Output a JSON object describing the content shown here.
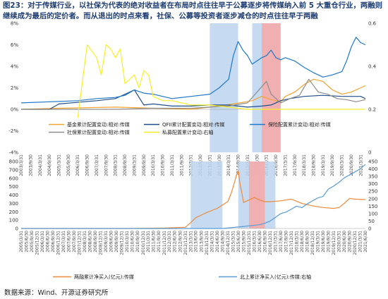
{
  "title": "图23：对于传媒行业，以社保为代表的绝对收益者在布局时点往往早于公募逐步将传媒纳入前 5 大重仓行业，两融则继续成为最后的定价者。而从退出的时点来看，社保、公募等投资者逐步减仓的时点往往早于两融",
  "source": "数据来源：Wind、开源证券研究所",
  "colors": {
    "fund": "#f2a531",
    "insurance": "#1f78c8",
    "social": "#8c8c8c",
    "private": "#f7ee2a",
    "qfii": "#1f4e8c",
    "margin": "#ee8a3c",
    "north": "#5b9bd5",
    "band_blue": "#bcd5ee",
    "band_red": "#f4aaaa"
  },
  "chart_data": [
    {
      "type": "line",
      "x_dates": [
        "2005/3/31",
        "2005/6/30",
        "2005/9/30",
        "2005/12/31",
        "2006/3/31",
        "2006/6/30",
        "2006/9/30",
        "2006/12/31",
        "2007/3/31",
        "2007/6/30",
        "2007/9/30",
        "2007/12/31",
        "2008/3/31",
        "2008/6/30",
        "2008/9/30",
        "2008/12/31",
        "2009/3/31",
        "2009/6/30",
        "2009/9/30",
        "2009/12/31",
        "2010/3/31",
        "2010/6/30",
        "2010/9/30",
        "2010/12/31",
        "2011/3/31",
        "2011/6/30",
        "2011/9/30",
        "2011/12/31",
        "2012/3/31",
        "2012/6/30",
        "2012/9/30",
        "2012/12/31",
        "2013/3/31",
        "2013/6/30",
        "2013/9/30",
        "2013/12/31",
        "2014/3/31",
        "2014/6/30",
        "2014/9/30",
        "2014/12/31",
        "2015/3/31",
        "2015/6/30",
        "2015/9/30",
        "2015/12/31",
        "2016/3/31",
        "2016/6/30",
        "2016/9/30",
        "2016/12/31",
        "2017/3/31",
        "2017/6/30",
        "2017/9/30",
        "2017/12/31",
        "2018/3/31",
        "2018/6/30",
        "2018/9/30",
        "2018/12/31",
        "2019/3/31",
        "2019/6/30",
        "2019/9/30",
        "2019/12/31",
        "2020/3/31",
        "2020/6/30",
        "2020/9/30",
        "2020/12/31",
        "2021/3/31",
        "2021/6/30"
      ],
      "x_ticks": [
        "2003/3/31",
        "2003/9/30",
        "2004/3/31",
        "2004/9/30",
        "2005/3/31",
        "2005/9/30",
        "2006/3/31",
        "2006/9/30",
        "2007/3/31",
        "2007/9/30",
        "2008/3/31",
        "2008/9/30",
        "2009/3/31",
        "2009/9/30",
        "2010/3/31",
        "2010/9/30",
        "2011/3/31",
        "2011/9/30",
        "2012/3/31",
        "2012/9/30",
        "2013/3/31",
        "2013/9/30",
        "2014/3/31",
        "2014/9/30",
        "2015/3/31",
        "2015/9/30",
        "2016/3/31",
        "2016/9/30",
        "2017/3/31",
        "2017/9/30",
        "2018/3/31",
        "2018/9/30",
        "2019/3/31",
        "2019/9/30",
        "2020/3/31",
        "2020/9/30",
        "2021/3/31"
      ],
      "y_left_ticks": [
        "-4%",
        "-2%",
        "0%",
        "2%",
        "4%",
        "6%",
        "8%"
      ],
      "y_right_ticks": [
        "0",
        "0.2",
        "0.4",
        "0.6"
      ],
      "ylim_left": [
        -4,
        8
      ],
      "ylim_right": [
        0,
        0.6
      ],
      "x_range": [
        "2003/3/31",
        "2021/6/30"
      ],
      "bands_blue": [
        [
          "2013/3/31",
          "2014/9/30"
        ],
        [
          "2015/6/30",
          "2016/12/31"
        ]
      ],
      "bands_red": [
        [
          "2015/12/31",
          "2016/12/31"
        ]
      ],
      "series": [
        {
          "name": "基金累计配置变动:相对:传媒",
          "color_key": "fund",
          "axis": "left",
          "x": [
            "2003/3/31",
            "2005/3/31",
            "2008/3/31",
            "2010/3/31",
            "2012/3/31",
            "2013/9/30",
            "2014/6/30",
            "2015/6/30",
            "2015/12/31",
            "2016/6/30",
            "2016/12/31",
            "2017/3/31",
            "2017/9/30",
            "2018/3/31",
            "2018/9/30",
            "2019/3/31",
            "2019/9/30",
            "2020/3/31",
            "2020/9/30",
            "2021/3/31",
            "2021/6/30"
          ],
          "y": [
            0,
            0.1,
            0.2,
            0.1,
            0,
            0.3,
            0.5,
            0.8,
            1.2,
            0.9,
            0.7,
            1.2,
            1.6,
            2.3,
            2.8,
            2.6,
            1.8,
            1.4,
            1.6,
            2.0,
            2.2
          ]
        },
        {
          "name": "QFII累计配置变动:相对:传媒",
          "color_key": "qfii",
          "axis": "left",
          "x": [
            "2003/3/31",
            "2004/9/30",
            "2005/3/31",
            "2007/3/31",
            "2008/3/31",
            "2009/3/31",
            "2009/9/30",
            "2010/3/31",
            "2011/3/31",
            "2012/3/31",
            "2013/3/31",
            "2014/3/31",
            "2015/3/31",
            "2015/12/31",
            "2016/6/30",
            "2016/12/31",
            "2017/6/30",
            "2018/3/31",
            "2019/3/31",
            "2020/3/31",
            "2021/3/31",
            "2021/6/30"
          ],
          "y": [
            0,
            0,
            0.5,
            0.8,
            1.0,
            1.8,
            0.4,
            0.5,
            0.3,
            0.3,
            0.4,
            0.4,
            0.2,
            0.3,
            0.4,
            0.8,
            1.0,
            1.2,
            1.3,
            1.2,
            1.2,
            1.0
          ]
        },
        {
          "name": "保险配置累计变动:相对:传媒",
          "color_key": "insurance",
          "axis": "left",
          "x": [
            "2003/3/31",
            "2006/3/31",
            "2007/3/31",
            "2008/3/31",
            "2008/9/30",
            "2009/3/31",
            "2009/9/30",
            "2010/3/31",
            "2011/3/31",
            "2012/3/31",
            "2013/3/31",
            "2013/9/30",
            "2014/3/31",
            "2014/6/30",
            "2014/9/30",
            "2014/12/31",
            "2015/3/31",
            "2015/6/30",
            "2015/9/30",
            "2015/12/31",
            "2016/3/31",
            "2016/6/30",
            "2016/9/30",
            "2016/12/31",
            "2017/3/31",
            "2017/9/30",
            "2018/3/31",
            "2018/9/30",
            "2019/3/31",
            "2019/9/30",
            "2020/3/31",
            "2020/6/30",
            "2020/9/30",
            "2020/12/31",
            "2021/3/31",
            "2021/6/30"
          ],
          "y": [
            0.6,
            0.8,
            1.0,
            1.1,
            1.3,
            1.8,
            1.5,
            1.4,
            1.0,
            1.2,
            1.4,
            2.0,
            2.8,
            5.0,
            6.3,
            5.5,
            5.0,
            4.2,
            4.5,
            4.8,
            5.0,
            5.5,
            4.8,
            4.6,
            4.8,
            4.5,
            3.9,
            3.4,
            3.0,
            3.2,
            3.5,
            4.5,
            5.8,
            6.7,
            6.2,
            6.0
          ]
        },
        {
          "name": "社保累计配置变动:相对:传媒",
          "color_key": "social",
          "axis": "left",
          "x": [
            "2003/3/31",
            "2008/3/31",
            "2010/3/31",
            "2012/3/31",
            "2013/3/31",
            "2014/3/31",
            "2015/3/31",
            "2015/9/30",
            "2016/3/31",
            "2016/6/30",
            "2016/12/31",
            "2017/6/30",
            "2017/12/31",
            "2018/6/30",
            "2018/12/31",
            "2019/6/30",
            "2019/12/31",
            "2020/6/30",
            "2020/12/31",
            "2021/6/30"
          ],
          "y": [
            0,
            0,
            0.1,
            0.1,
            0.2,
            0.3,
            0.6,
            1.6,
            2.6,
            1.4,
            0.6,
            1.0,
            1.3,
            2.8,
            1.6,
            1.4,
            1.0,
            0.9,
            0.7,
            0.9
          ]
        },
        {
          "name": "私募配置累计变动:右轴",
          "color_key": "private",
          "axis": "right",
          "x": [
            "2006/3/31",
            "2006/9/30",
            "2007/3/31",
            "2007/6/30",
            "2007/9/30",
            "2007/12/31",
            "2008/3/31",
            "2008/6/30",
            "2008/9/30",
            "2008/12/31",
            "2009/3/31",
            "2009/6/30",
            "2009/9/30",
            "2009/12/31",
            "2010/3/31",
            "2010/6/30",
            "2010/9/30",
            "2011/3/31",
            "2012/3/31",
            "2013/3/31",
            "2015/3/31",
            "2017/3/31",
            "2019/3/31",
            "2021/6/30"
          ],
          "y": [
            0.16,
            0.5,
            0.44,
            0.36,
            0.5,
            0.48,
            0.44,
            0.48,
            0.32,
            0.34,
            0.36,
            0.3,
            0.38,
            0.36,
            0.26,
            0.25,
            0.24,
            0.24,
            0.22,
            0.22,
            0.2,
            0.2,
            0.2,
            0.2
          ]
        }
      ]
    },
    {
      "type": "line",
      "x_dates": [
        "2005/3/31",
        "2005/6/30",
        "2005/9/30",
        "2005/12/31",
        "2006/3/31",
        "2006/6/30",
        "2006/9/30",
        "2006/12/31",
        "2007/3/31",
        "2007/6/30",
        "2007/9/30",
        "2007/12/31",
        "2008/3/31",
        "2008/6/30",
        "2008/9/30",
        "2008/12/31",
        "2009/3/31",
        "2009/6/30",
        "2009/9/30",
        "2009/12/31",
        "2010/3/31",
        "2010/6/30",
        "2010/9/30",
        "2010/12/31",
        "2011/3/31",
        "2011/6/30",
        "2011/9/30",
        "2011/12/31",
        "2012/3/31",
        "2012/6/30",
        "2012/9/30",
        "2012/12/31",
        "2013/3/31",
        "2013/6/30",
        "2013/9/30",
        "2013/12/31",
        "2014/3/31",
        "2014/6/30",
        "2014/9/30",
        "2014/12/31",
        "2015/3/31",
        "2015/6/30",
        "2015/9/30",
        "2015/12/31",
        "2016/3/31",
        "2016/6/30",
        "2016/9/30",
        "2016/12/31",
        "2017/3/31",
        "2017/6/30",
        "2017/9/30",
        "2017/12/31",
        "2018/3/31",
        "2018/6/30",
        "2018/9/30",
        "2018/12/31",
        "2019/3/31",
        "2019/6/30",
        "2019/9/30",
        "2019/12/31",
        "2020/3/31",
        "2020/6/30",
        "2020/9/30",
        "2020/12/31",
        "2021/3/31",
        "2021/6/30"
      ],
      "y_left_ticks": [
        "0",
        "100",
        "200",
        "300",
        "400",
        "500",
        "600",
        "700",
        "800"
      ],
      "y_right_ticks": [
        "0",
        "50",
        "100",
        "150",
        "200",
        "250",
        "300",
        "350",
        "400",
        "450"
      ],
      "ylim_left": [
        0,
        800
      ],
      "ylim_right": [
        0,
        450
      ],
      "x_range": [
        "2005/3/31",
        "2021/6/30"
      ],
      "bands_blue": [
        [
          "2013/3/31",
          "2014/9/30"
        ],
        [
          "2015/6/30",
          "2017/3/31"
        ]
      ],
      "bands_red": [
        [
          "2015/12/31",
          "2016/9/30"
        ]
      ],
      "series": [
        {
          "name": "两融累计净买入(亿元):传媒",
          "color_key": "margin",
          "axis": "left",
          "x": [
            "2005/3/31",
            "2010/3/31",
            "2010/9/30",
            "2011/12/31",
            "2012/6/30",
            "2012/12/31",
            "2013/3/31",
            "2013/6/30",
            "2013/9/30",
            "2013/12/31",
            "2014/3/31",
            "2014/6/30",
            "2014/9/30",
            "2014/12/31",
            "2015/2/28",
            "2015/4/30",
            "2015/5/31",
            "2015/6/30",
            "2015/7/31",
            "2015/8/31",
            "2015/9/30",
            "2015/12/31",
            "2016/3/31",
            "2016/6/30",
            "2016/9/30",
            "2016/12/31",
            "2017/6/30",
            "2017/12/31",
            "2018/6/30",
            "2018/12/31",
            "2019/6/30",
            "2019/12/31",
            "2020/3/31",
            "2020/6/30",
            "2020/9/30",
            "2020/12/31",
            "2021/6/30"
          ],
          "y": [
            0,
            0,
            2,
            5,
            10,
            15,
            70,
            130,
            160,
            190,
            215,
            240,
            280,
            320,
            420,
            560,
            640,
            690,
            530,
            420,
            310,
            340,
            370,
            340,
            320,
            320,
            330,
            350,
            300,
            270,
            250,
            240,
            250,
            300,
            360,
            350,
            345
          ]
        },
        {
          "name": "北上累计净买入(亿元):传媒:右轴",
          "color_key": "north",
          "axis": "right",
          "x": [
            "2005/3/31",
            "2014/9/30",
            "2015/6/30",
            "2016/6/30",
            "2016/9/30",
            "2016/12/31",
            "2017/3/31",
            "2017/6/30",
            "2017/9/30",
            "2017/12/31",
            "2018/3/31",
            "2018/6/30",
            "2018/9/30",
            "2018/12/31",
            "2019/3/31",
            "2019/6/30",
            "2019/9/30",
            "2019/12/31",
            "2020/3/31",
            "2020/6/30",
            "2020/9/30",
            "2020/12/31",
            "2021/3/31",
            "2021/6/30"
          ],
          "y": [
            0,
            0,
            10,
            25,
            35,
            50,
            75,
            100,
            110,
            130,
            150,
            140,
            165,
            185,
            205,
            215,
            265,
            285,
            310,
            340,
            360,
            380,
            400,
            430
          ]
        }
      ]
    }
  ]
}
